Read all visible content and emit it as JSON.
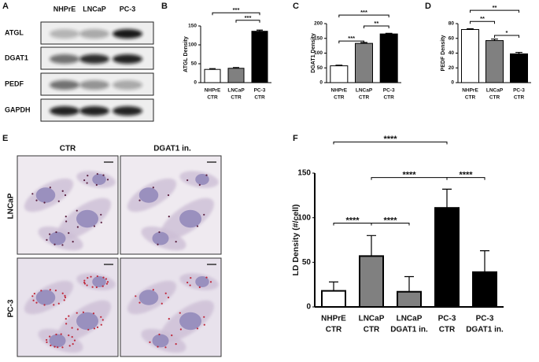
{
  "blot": {
    "panel": "A",
    "columns": [
      "NHPrE",
      "LNCaP",
      "PC-3"
    ],
    "rows": [
      "ATGL",
      "DGAT1",
      "PEDF",
      "GAPDH"
    ]
  },
  "micrographs": {
    "panel": "E",
    "columns": [
      "CTR",
      "DGAT1 in."
    ],
    "rows": [
      "LNCaP",
      "PC-3"
    ]
  },
  "chart_data": [
    {
      "type": "bar",
      "panel": "B",
      "ylabel": "ATGL Density",
      "categories": [
        [
          "NHPrE",
          "CTR"
        ],
        [
          "LNCaP",
          "CTR"
        ],
        [
          "PC-3",
          "CTR"
        ]
      ],
      "values": [
        35,
        38,
        136
      ],
      "errors": [
        2,
        2,
        3
      ],
      "colors": [
        "#ffffff",
        "#808080",
        "#000000"
      ],
      "ylim": [
        0,
        150
      ],
      "yticks": [
        0,
        50,
        100,
        150
      ],
      "annotations": [
        {
          "text": "***",
          "from": 0,
          "to": 2,
          "y": 185
        },
        {
          "text": "***",
          "from": 1,
          "to": 2,
          "y": 165
        }
      ]
    },
    {
      "type": "bar",
      "panel": "C",
      "ylabel": "DGAT1 Density",
      "categories": [
        [
          "NHPrE",
          "CTR"
        ],
        [
          "LNCaP",
          "CTR"
        ],
        [
          "PC-3",
          "CTR"
        ]
      ],
      "values": [
        57,
        133,
        165
      ],
      "errors": [
        2,
        3,
        2
      ],
      "colors": [
        "#ffffff",
        "#808080",
        "#000000"
      ],
      "ylim": [
        0,
        200
      ],
      "yticks": [
        0,
        50,
        100,
        150,
        200
      ],
      "annotations": [
        {
          "text": "***",
          "from": 0,
          "to": 2,
          "y": 229
        },
        {
          "text": "***",
          "from": 0,
          "to": 1,
          "y": 141
        },
        {
          "text": "**",
          "from": 1,
          "to": 2,
          "y": 192
        }
      ]
    },
    {
      "type": "bar",
      "panel": "D",
      "ylabel": "PEDF Density",
      "categories": [
        [
          "NHPrE",
          "CTR"
        ],
        [
          "LNCaP",
          "CTR"
        ],
        [
          "PC-3",
          "CTR"
        ]
      ],
      "values": [
        72,
        57,
        39
      ],
      "errors": [
        1,
        2,
        2
      ],
      "colors": [
        "#ffffff",
        "#808080",
        "#000000"
      ],
      "ylim": [
        0,
        80
      ],
      "yticks": [
        0,
        20,
        40,
        60,
        80
      ],
      "annotations": [
        {
          "text": "**",
          "from": 0,
          "to": 2,
          "y": 98
        },
        {
          "text": "**",
          "from": 0,
          "to": 1,
          "y": 83
        },
        {
          "text": "*",
          "from": 1,
          "to": 2,
          "y": 64
        }
      ]
    },
    {
      "type": "bar",
      "panel": "F",
      "ylabel": "LD Density (#/cell)",
      "categories": [
        [
          "NHPrE",
          "CTR"
        ],
        [
          "LNCaP",
          "CTR"
        ],
        [
          "LNCaP",
          "DGAT1 in."
        ],
        [
          "PC-3",
          "CTR"
        ],
        [
          "PC-3",
          "DGAT1 in."
        ]
      ],
      "values": [
        18,
        57,
        17,
        111,
        39
      ],
      "errors": [
        10,
        23,
        17,
        21,
        24
      ],
      "colors": [
        "#ffffff",
        "#808080",
        "#808080",
        "#000000",
        "#000000"
      ],
      "ylim": [
        0,
        150
      ],
      "yticks": [
        0,
        50,
        100,
        150
      ],
      "annotations": [
        {
          "text": "****",
          "from": 0,
          "to": 3,
          "y": 185
        },
        {
          "text": "****",
          "from": 1,
          "to": 3,
          "y": 145
        },
        {
          "text": "****",
          "from": 0,
          "to": 1,
          "y": 94
        },
        {
          "text": "****",
          "from": 1,
          "to": 2,
          "y": 94
        },
        {
          "text": "****",
          "from": 3,
          "to": 4,
          "y": 145
        }
      ]
    }
  ]
}
